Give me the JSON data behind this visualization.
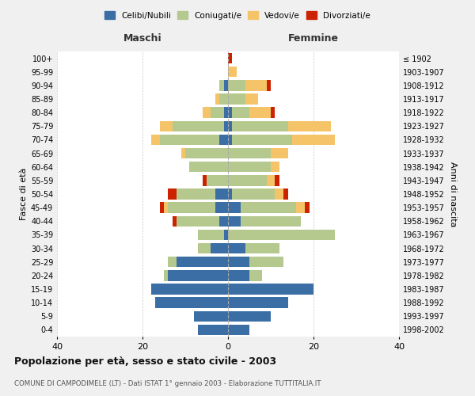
{
  "age_groups": [
    "0-4",
    "5-9",
    "10-14",
    "15-19",
    "20-24",
    "25-29",
    "30-34",
    "35-39",
    "40-44",
    "45-49",
    "50-54",
    "55-59",
    "60-64",
    "65-69",
    "70-74",
    "75-79",
    "80-84",
    "85-89",
    "90-94",
    "95-99",
    "100+"
  ],
  "birth_years": [
    "1998-2002",
    "1993-1997",
    "1988-1992",
    "1983-1987",
    "1978-1982",
    "1973-1977",
    "1968-1972",
    "1963-1967",
    "1958-1962",
    "1953-1957",
    "1948-1952",
    "1943-1947",
    "1938-1942",
    "1933-1937",
    "1928-1932",
    "1923-1927",
    "1918-1922",
    "1913-1917",
    "1908-1912",
    "1903-1907",
    "≤ 1902"
  ],
  "colors": {
    "celibi": "#3a6ea5",
    "coniugati": "#b5c98e",
    "vedovi": "#f5c469",
    "divorziati": "#cc2200"
  },
  "males": {
    "celibi": [
      7,
      8,
      17,
      18,
      14,
      12,
      4,
      1,
      2,
      3,
      3,
      0,
      0,
      0,
      2,
      1,
      1,
      0,
      1,
      0,
      0
    ],
    "coniugati": [
      0,
      0,
      0,
      0,
      1,
      2,
      3,
      6,
      10,
      11,
      9,
      5,
      9,
      10,
      14,
      12,
      3,
      2,
      1,
      0,
      0
    ],
    "vedovi": [
      0,
      0,
      0,
      0,
      0,
      0,
      0,
      0,
      0,
      1,
      0,
      0,
      0,
      1,
      2,
      3,
      2,
      1,
      0,
      0,
      0
    ],
    "divorziati": [
      0,
      0,
      0,
      0,
      0,
      0,
      0,
      0,
      1,
      1,
      2,
      1,
      0,
      0,
      0,
      0,
      0,
      0,
      0,
      0,
      0
    ]
  },
  "females": {
    "celibi": [
      5,
      10,
      14,
      20,
      5,
      5,
      4,
      0,
      3,
      3,
      1,
      0,
      0,
      0,
      1,
      1,
      1,
      0,
      0,
      0,
      0
    ],
    "coniugati": [
      0,
      0,
      0,
      0,
      3,
      8,
      8,
      25,
      14,
      13,
      10,
      9,
      10,
      10,
      14,
      13,
      4,
      4,
      4,
      0,
      0
    ],
    "vedovi": [
      0,
      0,
      0,
      0,
      0,
      0,
      0,
      0,
      0,
      2,
      2,
      2,
      2,
      4,
      10,
      10,
      5,
      3,
      5,
      2,
      0
    ],
    "divorziati": [
      0,
      0,
      0,
      0,
      0,
      0,
      0,
      0,
      0,
      1,
      1,
      1,
      0,
      0,
      0,
      0,
      1,
      0,
      1,
      0,
      1
    ]
  },
  "title": "Popolazione per età, sesso e stato civile - 2003",
  "subtitle": "COMUNE DI CAMPODIMELE (LT) - Dati ISTAT 1° gennaio 2003 - Elaborazione TUTTITALIA.IT",
  "xlabel_left": "Maschi",
  "xlabel_right": "Femmine",
  "ylabel_left": "Fasce di età",
  "ylabel_right": "Anni di nascita",
  "xlim": 40,
  "legend_labels": [
    "Celibi/Nubili",
    "Coniugati/e",
    "Vedovi/e",
    "Divorziati/e"
  ],
  "bg_color": "#f0f0f0",
  "plot_bg": "#ffffff",
  "grid_color": "#cccccc"
}
